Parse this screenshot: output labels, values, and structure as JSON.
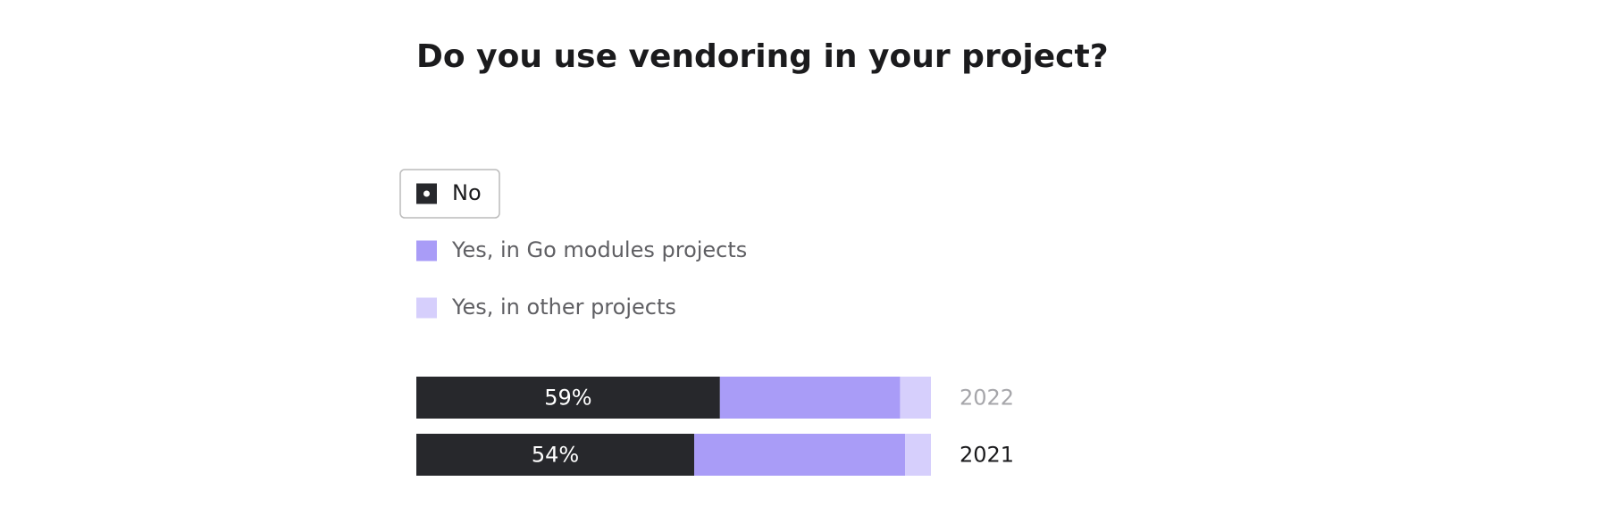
{
  "chart_data": {
    "type": "stacked-bar",
    "orientation": "horizontal",
    "title": "Do you use vendoring in your project?",
    "categories": [
      "2022",
      "2021"
    ],
    "series": [
      {
        "name": "No",
        "color": "#27282c",
        "values": [
          59,
          54
        ],
        "value_labels": [
          "59%",
          "54%"
        ]
      },
      {
        "name": "Yes, in Go modules projects",
        "color": "#a99cf7",
        "values": [
          35,
          41
        ]
      },
      {
        "name": "Yes, in other projects",
        "color": "#d6cffc",
        "values": [
          6,
          5
        ]
      }
    ],
    "xlim": [
      0,
      100
    ]
  }
}
